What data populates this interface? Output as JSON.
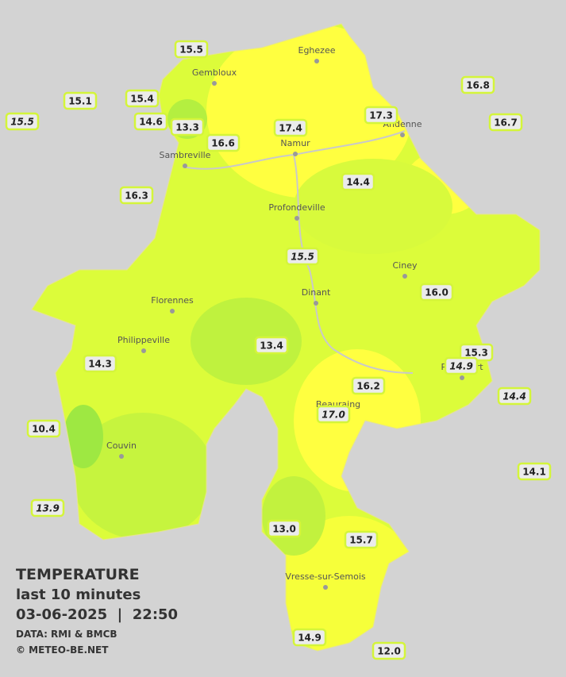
{
  "title": {
    "heading": "TEMPERATURE",
    "period": "last 10 minutes",
    "datetime": "03-06-2025  |  22:50",
    "source": "DATA: RMI & BMCB",
    "credit": "© METEO-BE.NET"
  },
  "cities": [
    "Eghezee",
    "Gembloux",
    "Andenne",
    "Namur",
    "Sambreville",
    "Profondeville",
    "Ciney",
    "Dinant",
    "Florennes",
    "Philippeville",
    "Rochefort",
    "Beauraing",
    "Couvin",
    "Vresse-sur-Semois"
  ],
  "stations": [
    {
      "temp": "15.5",
      "italic": false
    },
    {
      "temp": "15.1",
      "italic": false
    },
    {
      "temp": "15.5",
      "italic": true
    },
    {
      "temp": "15.4",
      "italic": false
    },
    {
      "temp": "14.6",
      "italic": false
    },
    {
      "temp": "13.3",
      "italic": false
    },
    {
      "temp": "16.6",
      "italic": false
    },
    {
      "temp": "17.4",
      "italic": false
    },
    {
      "temp": "17.3",
      "italic": false
    },
    {
      "temp": "16.8",
      "italic": false
    },
    {
      "temp": "16.7",
      "italic": false
    },
    {
      "temp": "16.3",
      "italic": false
    },
    {
      "temp": "14.4",
      "italic": false
    },
    {
      "temp": "15.5",
      "italic": true
    },
    {
      "temp": "16.0",
      "italic": false
    },
    {
      "temp": "13.4",
      "italic": false
    },
    {
      "temp": "15.3",
      "italic": false
    },
    {
      "temp": "14.9",
      "italic": true
    },
    {
      "temp": "14.3",
      "italic": false
    },
    {
      "temp": "16.2",
      "italic": false
    },
    {
      "temp": "17.0",
      "italic": true
    },
    {
      "temp": "14.4",
      "italic": true
    },
    {
      "temp": "10.4",
      "italic": false
    },
    {
      "temp": "14.1",
      "italic": false
    },
    {
      "temp": "13.9",
      "italic": true
    },
    {
      "temp": "13.0",
      "italic": false
    },
    {
      "temp": "15.7",
      "italic": false
    },
    {
      "temp": "14.9",
      "italic": false
    },
    {
      "temp": "12.0",
      "italic": false
    }
  ]
}
